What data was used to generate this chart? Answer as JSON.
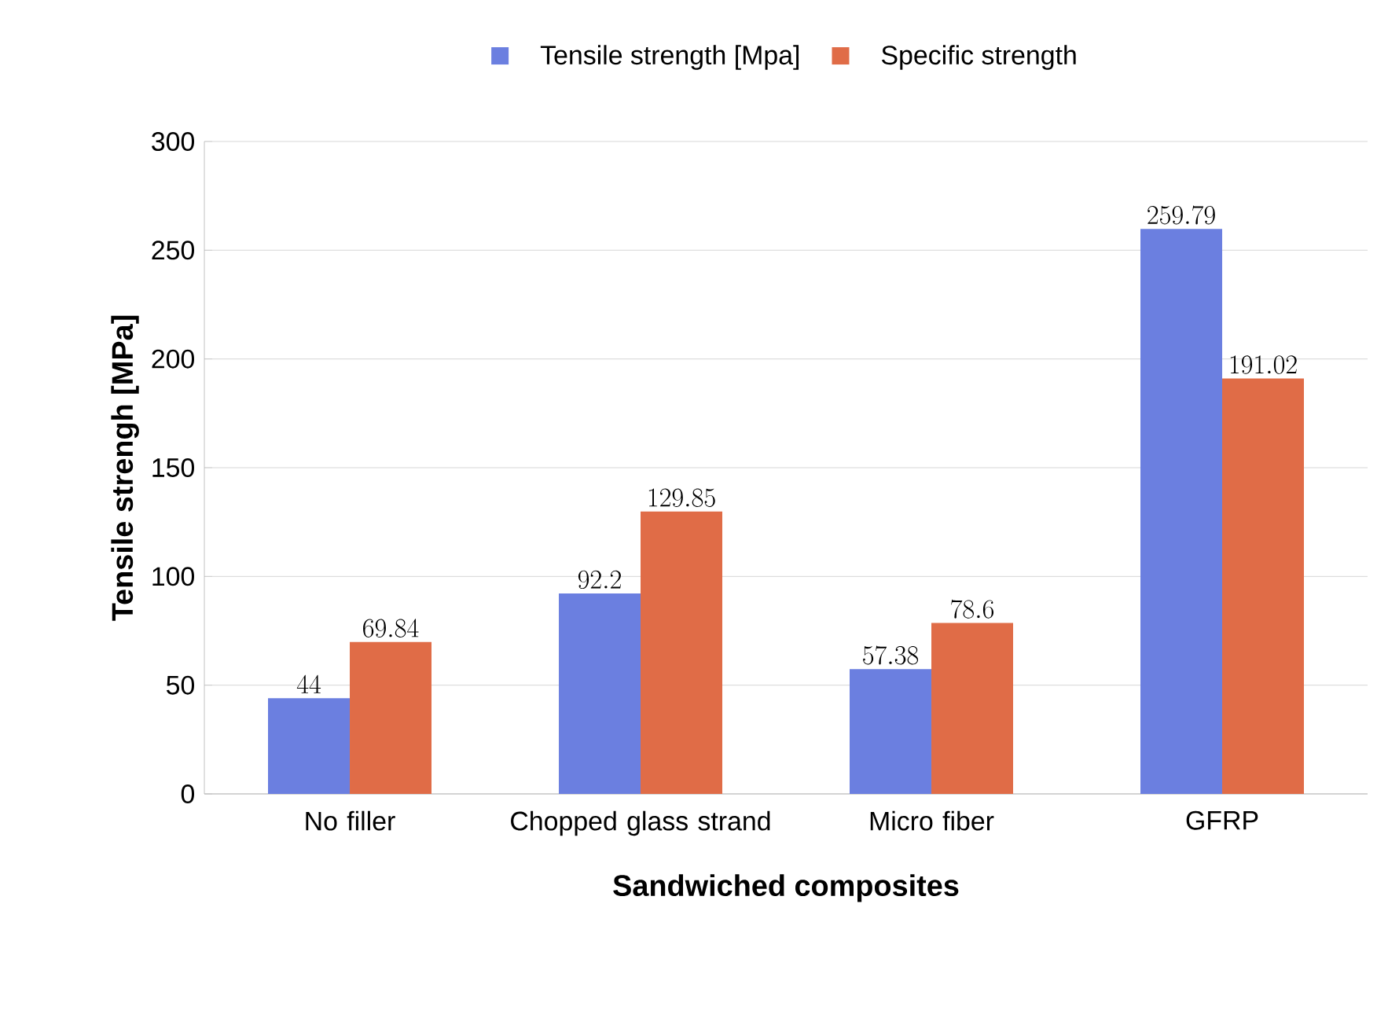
{
  "chart_data": {
    "type": "bar",
    "xlabel": "Sandwiched composites",
    "ylabel": "Tensile strengh [MPa]",
    "categories": [
      "No filler",
      "Chopped glass strand",
      "Micro fiber",
      "GFRP"
    ],
    "series": [
      {
        "name": "Tensile strength [Mpa]",
        "color": "#6b7fe0",
        "values": [
          44,
          92.2,
          57.38,
          259.79
        ]
      },
      {
        "name": "Specific strength",
        "color": "#e06c47",
        "values": [
          69.84,
          129.85,
          78.6,
          191.02
        ]
      }
    ],
    "ylim": [
      0,
      300
    ],
    "yticks": [
      0,
      50,
      100,
      150,
      200,
      250,
      300
    ],
    "grid": "y",
    "legend": "top",
    "data_labels": true
  }
}
